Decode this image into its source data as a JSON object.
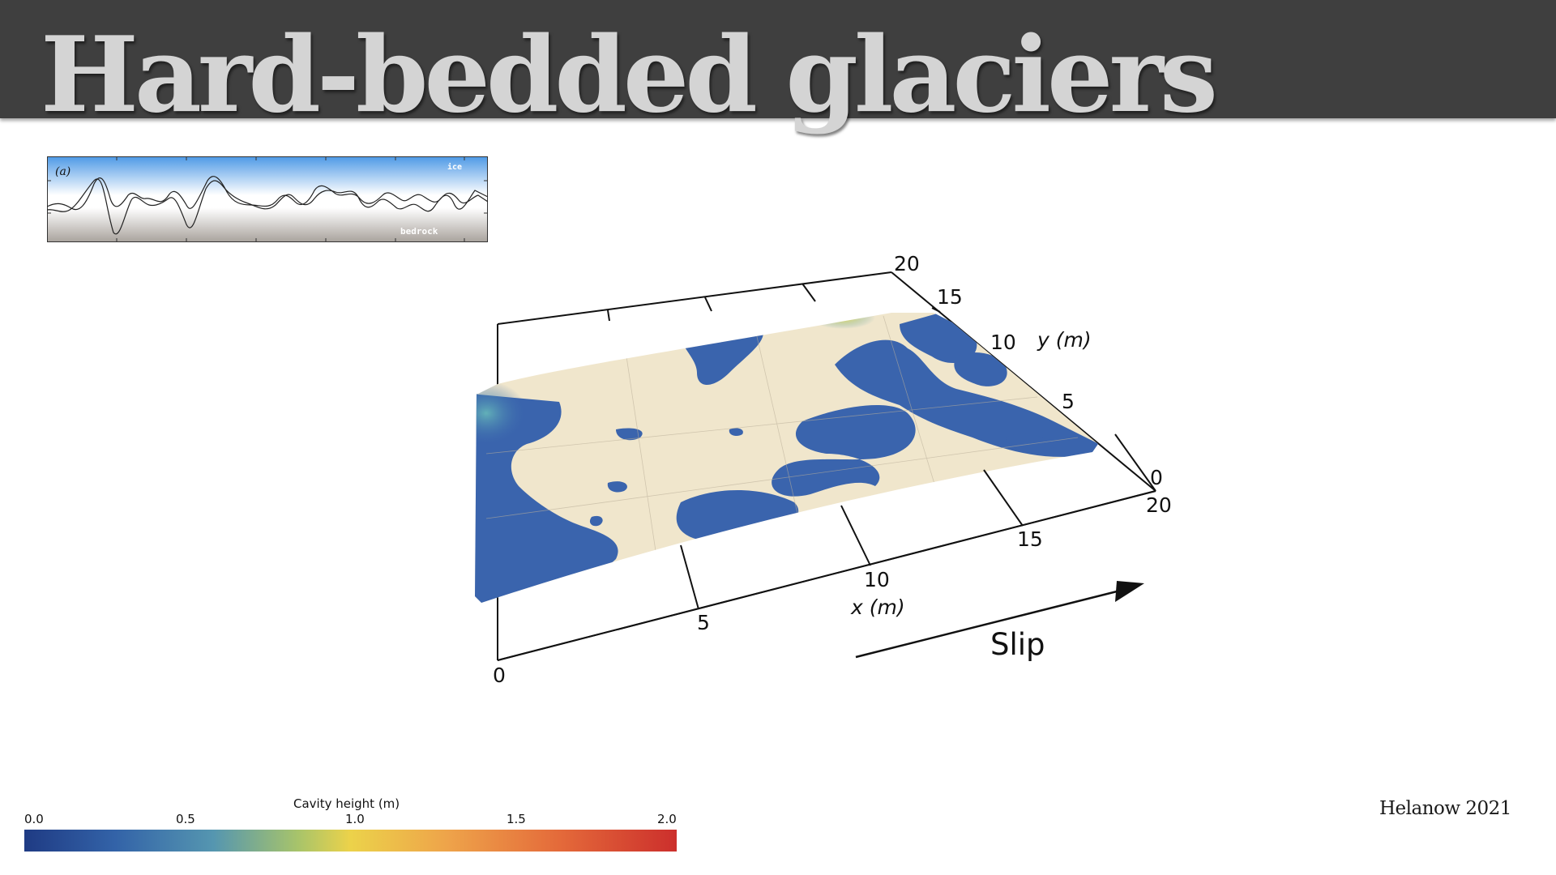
{
  "title": "Hard-bedded glaciers",
  "citation": "Helanow 2021",
  "profile_figure": {
    "panel_label": "(a)",
    "ice_label": "ice",
    "bedrock_label": "bedrock"
  },
  "surface_figure": {
    "x_axis_label": "x (m)",
    "y_axis_label": "y (m)",
    "x_ticks": [
      "0",
      "5",
      "10",
      "15",
      "20"
    ],
    "y_ticks": [
      "0",
      "5",
      "10",
      "15",
      "20"
    ],
    "slip_label": "Slip",
    "colors": {
      "open_cavity": "#3a64ad",
      "contact": "#f0e6cc",
      "high": "#e8d44a"
    }
  },
  "colorbar": {
    "label": "Cavity height (m)",
    "ticks": [
      "0.0",
      "0.5",
      "1.0",
      "1.5",
      "2.0"
    ],
    "range": [
      0,
      2.0
    ],
    "gradient": [
      "#1f3b84",
      "#3363a8",
      "#5596b0",
      "#a8c46a",
      "#ecd24a",
      "#eea34a",
      "#e46a3a",
      "#cc2f2c"
    ]
  }
}
